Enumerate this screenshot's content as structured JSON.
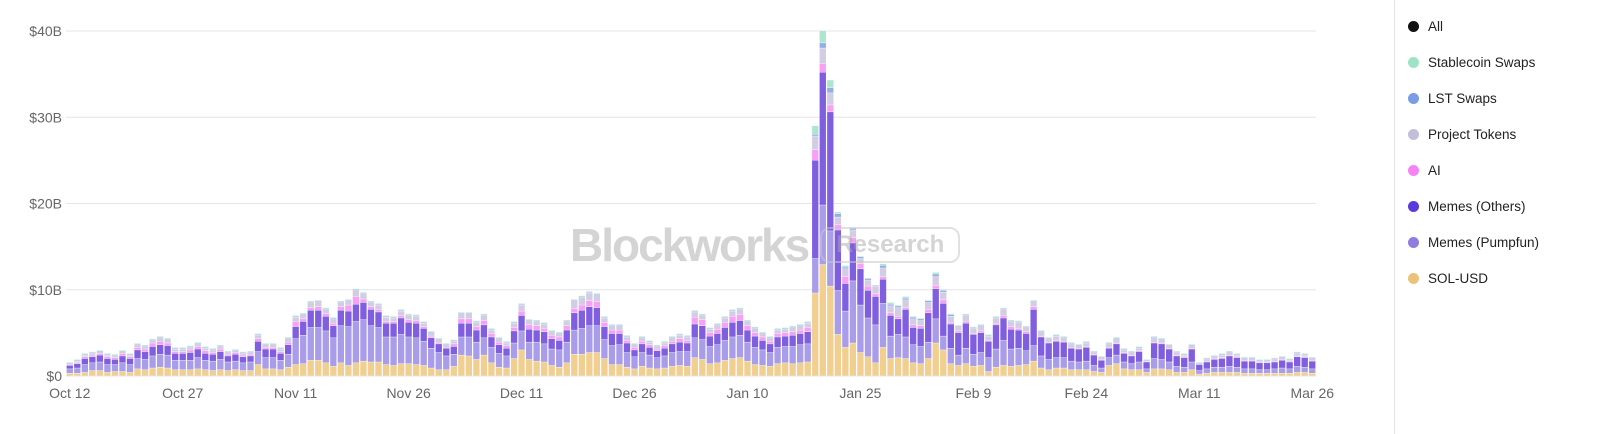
{
  "watermark": {
    "logo": "Blockworks",
    "badge": "Research"
  },
  "legend": [
    {
      "label": "All",
      "color": "#111111"
    },
    {
      "label": "Stablecoin Swaps",
      "color": "#9fe3c7"
    },
    {
      "label": "LST Swaps",
      "color": "#7b9be6"
    },
    {
      "label": "Project Tokens",
      "color": "#c4bedb"
    },
    {
      "label": "AI",
      "color": "#f683f3"
    },
    {
      "label": "Memes (Others)",
      "color": "#5a3ad8"
    },
    {
      "label": "Memes (Pumpfun)",
      "color": "#917de2"
    },
    {
      "label": "SOL-USD",
      "color": "#ecc27a"
    }
  ],
  "chart_data": {
    "type": "bar",
    "stacked": true,
    "x_start": "Oct 12",
    "x_end": "Mar 26",
    "x_tick_labels": [
      "Oct 12",
      "Oct 27",
      "Nov 11",
      "Nov 26",
      "Dec 11",
      "Dec 26",
      "Jan 10",
      "Jan 25",
      "Feb 9",
      "Feb 24",
      "Mar 11",
      "Mar 26"
    ],
    "y_tick_labels": [
      "$0",
      "$10B",
      "$20B",
      "$30B",
      "$40B"
    ],
    "y_ticks": [
      0,
      10,
      20,
      30,
      40
    ],
    "ylim": [
      0,
      40
    ],
    "yunit": "USD billions",
    "grid": "horizontal",
    "legend_position": "right",
    "series": [
      {
        "name": "SOL-USD",
        "color": "#f0cf91",
        "values": [
          0.3,
          0.3,
          0.4,
          0.6,
          0.6,
          0.4,
          0.5,
          0.5,
          0.4,
          0.8,
          0.7,
          0.9,
          1.0,
          0.9,
          0.7,
          0.7,
          0.7,
          0.8,
          0.7,
          0.6,
          0.7,
          0.6,
          0.7,
          0.6,
          0.6,
          1.3,
          0.8,
          0.8,
          0.7,
          1.0,
          1.3,
          1.4,
          1.8,
          1.8,
          1.5,
          1.1,
          1.5,
          1.2,
          1.5,
          1.7,
          1.6,
          1.6,
          1.3,
          1.2,
          1.4,
          1.4,
          1.3,
          1.2,
          0.9,
          0.7,
          0.7,
          1.1,
          2.4,
          2.3,
          1.9,
          2.4,
          1.5,
          1.0,
          0.9,
          2.0,
          3.0,
          1.9,
          1.7,
          1.6,
          1.2,
          1.0,
          1.5,
          2.5,
          2.5,
          2.7,
          2.7,
          2.0,
          1.3,
          1.3,
          1.0,
          0.8,
          1.1,
          0.9,
          0.8,
          0.9,
          1.1,
          1.2,
          1.1,
          2.1,
          1.9,
          1.4,
          1.5,
          1.8,
          2.0,
          2.1,
          1.7,
          1.3,
          1.2,
          1.1,
          1.4,
          1.5,
          1.4,
          1.5,
          1.6,
          9.6,
          12.9,
          10.4,
          4.8,
          3.3,
          3.8,
          2.7,
          2.2,
          1.5,
          3.3,
          2.0,
          2.1,
          2.0,
          1.5,
          1.4,
          2.0,
          3.8,
          3.0,
          1.4,
          1.2,
          1.4,
          1.1,
          1.2,
          0.5,
          1.0,
          1.2,
          1.1,
          1.2,
          1.3,
          1.7,
          0.9,
          0.7,
          0.9,
          0.9,
          0.7,
          0.7,
          0.7,
          0.5,
          0.4,
          1.2,
          1.4,
          0.8,
          0.7,
          0.7,
          0.4,
          0.8,
          0.8,
          0.7,
          0.4,
          0.4,
          0.7,
          0.2,
          0.3,
          0.4,
          0.4,
          0.4,
          0.4,
          0.3,
          0.3,
          0.3,
          0.3,
          0.3,
          0.3,
          0.3,
          0.4,
          0.4,
          0.3
        ]
      },
      {
        "name": "Memes (Pumpfun)",
        "color": "#a99ce9",
        "values": [
          0.5,
          0.6,
          0.9,
          0.9,
          1.0,
          0.9,
          0.8,
          1.0,
          0.9,
          1.2,
          1.2,
          1.4,
          1.5,
          1.5,
          1.1,
          1.1,
          1.1,
          1.3,
          1.1,
          1.1,
          1.2,
          1.0,
          1.0,
          0.9,
          1.0,
          1.5,
          1.3,
          1.3,
          1.1,
          1.5,
          3.0,
          3.3,
          3.8,
          3.8,
          3.7,
          3.3,
          4.3,
          4.5,
          4.8,
          4.8,
          4.2,
          4.0,
          3.2,
          3.3,
          3.4,
          3.1,
          3.1,
          2.8,
          2.3,
          2.0,
          1.6,
          1.4,
          2.1,
          2.2,
          2.0,
          2.0,
          1.8,
          1.6,
          1.4,
          1.8,
          2.2,
          2.0,
          2.2,
          2.1,
          1.9,
          2.0,
          2.4,
          2.8,
          3.0,
          3.1,
          3.1,
          2.2,
          2.2,
          2.3,
          1.7,
          1.4,
          1.6,
          1.5,
          1.3,
          1.4,
          1.6,
          1.6,
          1.7,
          2.3,
          2.3,
          2.0,
          2.1,
          2.3,
          2.5,
          2.6,
          2.2,
          2.0,
          1.8,
          1.6,
          1.9,
          1.9,
          2.0,
          2.1,
          2.1,
          4.0,
          6.9,
          6.4,
          5.1,
          4.2,
          7.2,
          5.5,
          4.5,
          4.4,
          5.1,
          2.6,
          2.7,
          2.5,
          2.1,
          2.0,
          1.9,
          2.8,
          1.6,
          1.8,
          1.2,
          1.8,
          1.4,
          1.5,
          1.6,
          2.1,
          2.9,
          2.0,
          2.0,
          1.6,
          1.8,
          1.4,
          1.2,
          1.2,
          1.2,
          1.0,
          0.9,
          1.0,
          0.7,
          0.5,
          0.9,
          1.0,
          0.8,
          0.7,
          0.9,
          0.4,
          1.2,
          1.1,
          0.9,
          0.7,
          0.6,
          0.9,
          0.4,
          0.5,
          0.6,
          0.6,
          0.7,
          0.6,
          0.5,
          0.5,
          0.4,
          0.4,
          0.5,
          0.6,
          0.5,
          0.7,
          0.6,
          0.5
        ]
      },
      {
        "name": "Memes (Others)",
        "color": "#7f5fe0",
        "values": [
          0.4,
          0.5,
          0.7,
          0.7,
          0.8,
          0.7,
          0.6,
          0.8,
          0.7,
          1.0,
          0.9,
          1.1,
          1.1,
          1.1,
          0.8,
          0.8,
          0.9,
          1.0,
          0.8,
          0.8,
          0.9,
          0.7,
          0.8,
          0.7,
          0.7,
          1.2,
          1.0,
          1.0,
          0.8,
          1.1,
          1.4,
          1.6,
          2.0,
          2.0,
          1.7,
          1.4,
          1.8,
          1.8,
          2.0,
          2.0,
          1.9,
          1.8,
          1.6,
          1.6,
          1.9,
          1.7,
          1.7,
          1.5,
          1.2,
          1.0,
          0.9,
          0.9,
          1.6,
          1.6,
          1.4,
          1.5,
          1.2,
          1.0,
          0.9,
          1.4,
          1.8,
          1.5,
          1.4,
          1.4,
          1.2,
          1.1,
          1.4,
          2.0,
          2.1,
          2.2,
          2.1,
          1.5,
          1.4,
          1.3,
          1.1,
          0.8,
          1.0,
          0.9,
          0.8,
          0.9,
          1.0,
          1.1,
          1.0,
          1.6,
          1.6,
          1.2,
          1.3,
          1.5,
          1.7,
          1.7,
          1.4,
          1.3,
          1.1,
          1.0,
          1.2,
          1.2,
          1.3,
          1.3,
          1.4,
          11.4,
          15.4,
          13.8,
          7.0,
          3.2,
          4.4,
          4.2,
          3.2,
          3.3,
          2.8,
          2.4,
          1.8,
          3.2,
          2.0,
          2.1,
          3.4,
          3.5,
          3.8,
          2.8,
          2.6,
          2.9,
          2.3,
          2.3,
          1.9,
          2.8,
          2.6,
          2.3,
          2.1,
          2.0,
          4.2,
          2.2,
          1.9,
          1.9,
          1.8,
          1.5,
          1.5,
          1.6,
          1.2,
          0.9,
          1.1,
          1.3,
          1.0,
          0.9,
          1.2,
          0.8,
          1.8,
          1.8,
          1.5,
          1.2,
          1.1,
          1.5,
          0.7,
          0.8,
          0.9,
          1.0,
          1.2,
          1.1,
          0.9,
          0.9,
          0.8,
          0.8,
          0.8,
          0.9,
          0.8,
          1.1,
          1.1,
          0.9
        ]
      },
      {
        "name": "AI",
        "color": "#f7a0f5",
        "values": [
          0.1,
          0.1,
          0.2,
          0.2,
          0.2,
          0.2,
          0.2,
          0.3,
          0.2,
          0.3,
          0.3,
          0.4,
          0.4,
          0.3,
          0.2,
          0.2,
          0.3,
          0.3,
          0.3,
          0.2,
          0.3,
          0.2,
          0.2,
          0.2,
          0.2,
          0.3,
          0.2,
          0.2,
          0.2,
          0.3,
          0.6,
          0.3,
          0.3,
          0.4,
          0.3,
          0.3,
          0.4,
          0.7,
          0.9,
          0.4,
          0.3,
          0.3,
          0.2,
          0.2,
          0.3,
          0.3,
          0.3,
          0.2,
          0.2,
          0.2,
          0.1,
          0.3,
          0.5,
          0.5,
          0.4,
          0.5,
          0.4,
          0.3,
          0.3,
          0.4,
          0.5,
          0.5,
          0.5,
          0.4,
          0.4,
          0.4,
          0.5,
          0.5,
          0.6,
          0.7,
          0.7,
          0.5,
          0.4,
          0.4,
          0.3,
          0.3,
          0.3,
          0.3,
          0.2,
          0.3,
          0.3,
          0.4,
          0.3,
          0.8,
          0.7,
          0.4,
          0.5,
          0.6,
          0.7,
          0.7,
          0.5,
          0.4,
          0.4,
          0.3,
          0.4,
          0.4,
          0.4,
          0.4,
          0.5,
          1.2,
          1.0,
          0.8,
          0.6,
          0.8,
          0.6,
          0.6,
          0.5,
          0.3,
          0.3,
          0.3,
          0.3,
          0.2,
          0.3,
          0.3,
          0.4,
          0.4,
          0.4,
          0.2,
          0.2,
          0.2,
          0.1,
          0.2,
          0.1,
          0.2,
          0.3,
          0.3,
          0.2,
          0.2,
          0.3,
          0.1,
          0.1,
          0.1,
          0.1,
          0.1,
          0.1,
          0.1,
          0.1,
          0.1,
          0.1,
          0.1,
          0.1,
          0.1,
          0.1,
          0.0,
          0.1,
          0.1,
          0.1,
          0.1,
          0.1,
          0.1,
          0.0,
          0.1,
          0.1,
          0.1,
          0.1,
          0.1,
          0.1,
          0.1,
          0.0,
          0.0,
          0.1,
          0.1,
          0.0,
          0.1,
          0.1,
          0.1
        ]
      },
      {
        "name": "Project Tokens",
        "color": "#d2cde2",
        "values": [
          0.1,
          0.2,
          0.2,
          0.2,
          0.2,
          0.2,
          0.2,
          0.2,
          0.2,
          0.3,
          0.3,
          0.3,
          0.4,
          0.4,
          0.3,
          0.3,
          0.3,
          0.3,
          0.3,
          0.3,
          0.3,
          0.2,
          0.2,
          0.2,
          0.2,
          0.4,
          0.3,
          0.3,
          0.3,
          0.4,
          0.5,
          0.5,
          0.6,
          0.6,
          0.5,
          0.5,
          0.5,
          0.5,
          0.7,
          0.6,
          0.5,
          0.5,
          0.5,
          0.4,
          0.5,
          0.5,
          0.5,
          0.4,
          0.4,
          0.3,
          0.3,
          0.3,
          0.6,
          0.6,
          0.5,
          0.6,
          0.4,
          0.4,
          0.3,
          0.5,
          0.7,
          0.5,
          0.5,
          0.5,
          0.4,
          0.4,
          0.5,
          0.9,
          0.9,
          0.9,
          0.8,
          0.5,
          0.5,
          0.5,
          0.4,
          0.3,
          0.4,
          0.3,
          0.3,
          0.3,
          0.4,
          0.4,
          0.4,
          0.6,
          0.5,
          0.4,
          0.5,
          0.5,
          0.6,
          0.6,
          0.5,
          0.5,
          0.4,
          0.4,
          0.4,
          0.4,
          0.5,
          0.5,
          0.5,
          1.6,
          1.8,
          1.4,
          0.9,
          0.9,
          0.9,
          0.6,
          0.7,
          0.9,
          1.0,
          0.8,
          1.0,
          0.9,
          0.7,
          0.6,
          0.8,
          1.0,
          0.9,
          0.7,
          0.5,
          0.7,
          0.6,
          0.6,
          0.5,
          0.6,
          0.7,
          0.6,
          0.7,
          0.5,
          0.6,
          0.5,
          0.4,
          0.5,
          0.4,
          0.4,
          0.3,
          0.4,
          0.2,
          0.2,
          0.4,
          0.5,
          0.3,
          0.3,
          0.3,
          0.1,
          0.5,
          0.4,
          0.3,
          0.3,
          0.2,
          0.3,
          0.1,
          0.2,
          0.2,
          0.3,
          0.3,
          0.2,
          0.2,
          0.2,
          0.2,
          0.2,
          0.2,
          0.2,
          0.2,
          0.3,
          0.2,
          0.2
        ]
      },
      {
        "name": "LST Swaps",
        "color": "#94aeea",
        "values": [
          0.1,
          0.1,
          0.1,
          0.1,
          0.1,
          0.1,
          0.1,
          0.1,
          0.1,
          0.1,
          0.1,
          0.1,
          0.1,
          0.1,
          0.1,
          0.1,
          0.1,
          0.1,
          0.1,
          0.1,
          0.1,
          0.1,
          0.1,
          0.1,
          0.1,
          0.1,
          0.1,
          0.1,
          0.1,
          0.1,
          0.1,
          0.1,
          0.1,
          0.1,
          0.1,
          0.1,
          0.1,
          0.1,
          0.1,
          0.1,
          0.1,
          0.1,
          0.1,
          0.1,
          0.1,
          0.1,
          0.1,
          0.1,
          0.1,
          0.1,
          0.1,
          0.1,
          0.1,
          0.1,
          0.1,
          0.1,
          0.1,
          0.1,
          0.1,
          0.1,
          0.1,
          0.1,
          0.1,
          0.1,
          0.1,
          0.1,
          0.1,
          0.1,
          0.1,
          0.1,
          0.1,
          0.1,
          0.1,
          0.1,
          0.1,
          0.1,
          0.1,
          0.1,
          0.1,
          0.1,
          0.1,
          0.1,
          0.1,
          0.1,
          0.1,
          0.1,
          0.1,
          0.1,
          0.1,
          0.1,
          0.1,
          0.1,
          0.1,
          0.1,
          0.1,
          0.1,
          0.1,
          0.1,
          0.1,
          0.2,
          0.6,
          0.6,
          0.4,
          0.2,
          0.2,
          0.2,
          0.2,
          0.1,
          0.3,
          0.2,
          0.2,
          0.2,
          0.2,
          0.2,
          0.2,
          0.3,
          0.2,
          0.2,
          0.1,
          0.1,
          0.1,
          0.1,
          0.1,
          0.1,
          0.1,
          0.1,
          0.1,
          0.1,
          0.1,
          0.1,
          0.1,
          0.1,
          0.1,
          0.1,
          0.1,
          0.1,
          0.1,
          0.1,
          0.1,
          0.1,
          0.1,
          0.1,
          0.1,
          0.1,
          0.1,
          0.1,
          0.1,
          0.1,
          0.1,
          0.1,
          0.1,
          0.1,
          0.1,
          0.1,
          0.1,
          0.1,
          0.1,
          0.1,
          0.1,
          0.1,
          0.1,
          0.1,
          0.1,
          0.1,
          0.1,
          0.1
        ]
      },
      {
        "name": "Stablecoin Swaps",
        "color": "#ade6cf",
        "values": [
          0.1,
          0.1,
          0.1,
          0.1,
          0.1,
          0.1,
          0.1,
          0.1,
          0.1,
          0.1,
          0.1,
          0.1,
          0.1,
          0.1,
          0.1,
          0.1,
          0.1,
          0.1,
          0.1,
          0.1,
          0.1,
          0.1,
          0.1,
          0.1,
          0.1,
          0.1,
          0.1,
          0.1,
          0.1,
          0.1,
          0.1,
          0.1,
          0.1,
          0.1,
          0.1,
          0.1,
          0.1,
          0.1,
          0.1,
          0.1,
          0.1,
          0.1,
          0.1,
          0.1,
          0.1,
          0.1,
          0.1,
          0.1,
          0.1,
          0.1,
          0.1,
          0.1,
          0.1,
          0.1,
          0.1,
          0.1,
          0.1,
          0.1,
          0.1,
          0.1,
          0.1,
          0.1,
          0.1,
          0.1,
          0.1,
          0.1,
          0.1,
          0.1,
          0.1,
          0.1,
          0.1,
          0.1,
          0.1,
          0.1,
          0.1,
          0.1,
          0.1,
          0.1,
          0.1,
          0.1,
          0.1,
          0.1,
          0.1,
          0.1,
          0.1,
          0.1,
          0.1,
          0.1,
          0.1,
          0.1,
          0.1,
          0.1,
          0.1,
          0.1,
          0.1,
          0.1,
          0.1,
          0.1,
          0.1,
          1.0,
          1.4,
          0.9,
          0.2,
          0.2,
          0.1,
          0.1,
          0.0,
          0.0,
          0.2,
          0.2,
          0.1,
          0.2,
          0.1,
          0.1,
          0.1,
          0.2,
          0.1,
          0.1,
          0.1,
          0.1,
          0.1,
          0.1,
          0.1,
          0.1,
          0.1,
          0.1,
          0.1,
          0.1,
          0.1,
          0.1,
          0.1,
          0.1,
          0.1,
          0.1,
          0.1,
          0.1,
          0.1,
          0.1,
          0.1,
          0.1,
          0.1,
          0.1,
          0.1,
          0.1,
          0.1,
          0.1,
          0.1,
          0.1,
          0.1,
          0.1,
          0.1,
          0.1,
          0.1,
          0.1,
          0.1,
          0.1,
          0.1,
          0.1,
          0.1,
          0.1,
          0.1,
          0.1,
          0.1,
          0.1,
          0.1,
          0.1
        ]
      }
    ]
  }
}
